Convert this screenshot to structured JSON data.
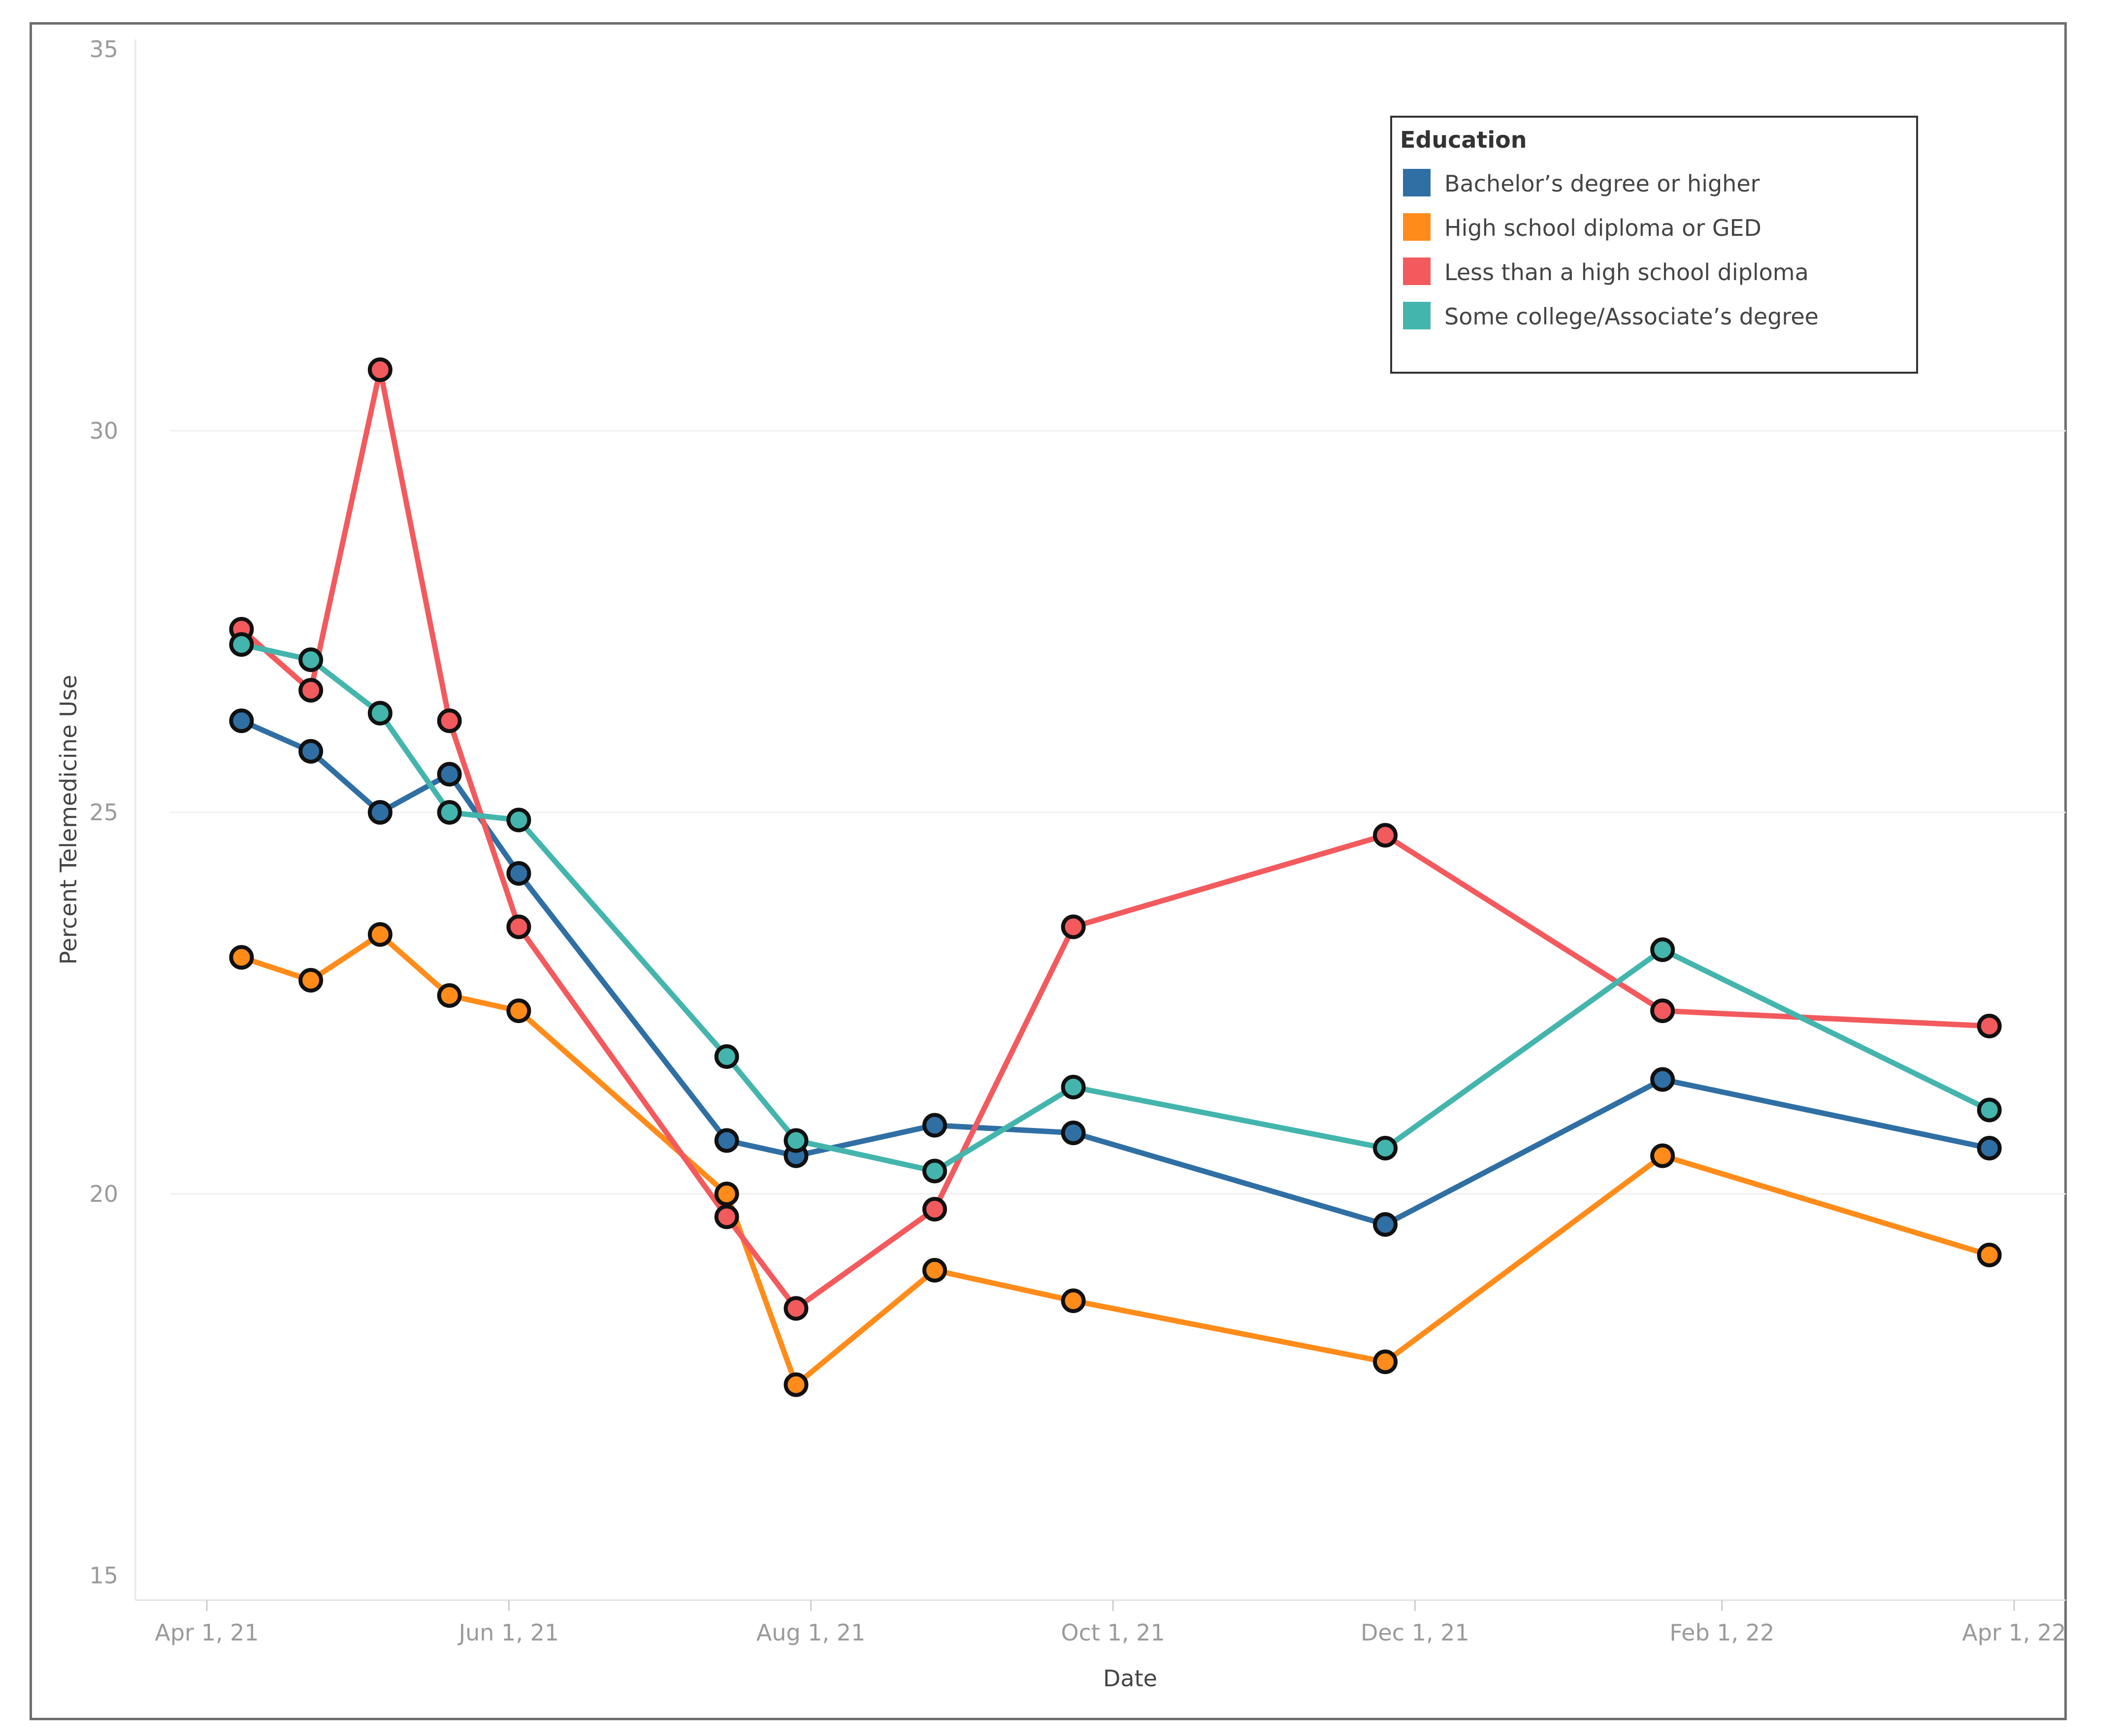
{
  "chart_data": {
    "type": "line",
    "title": "",
    "xlabel": "Date",
    "ylabel": "Percent Telemedicine Use",
    "ylim": [
      15,
      35
    ],
    "y_ticks": [
      15,
      20,
      25,
      30,
      35
    ],
    "x_ticks": [
      {
        "label": "Apr 1, 21",
        "day": 0
      },
      {
        "label": "Jun 1, 21",
        "day": 61
      },
      {
        "label": "Aug 1, 21",
        "day": 122
      },
      {
        "label": "Oct 1, 21",
        "day": 183
      },
      {
        "label": "Dec 1, 21",
        "day": 244
      },
      {
        "label": "Feb 1, 22",
        "day": 306
      },
      {
        "label": "Apr 1, 22",
        "day": 365
      }
    ],
    "x_days": [
      7,
      21,
      35,
      49,
      63,
      105,
      119,
      147,
      175,
      238,
      294,
      360
    ],
    "legend": {
      "title": "Education",
      "position": "top-right"
    },
    "series": [
      {
        "name": "Bachelor’s degree or higher",
        "color": "#2f6fa4",
        "values": [
          26.2,
          25.8,
          25.0,
          25.5,
          24.2,
          20.7,
          20.5,
          20.9,
          20.8,
          19.6,
          21.5,
          20.6
        ]
      },
      {
        "name": "High school diploma or GED",
        "color": "#ff8c1a",
        "values": [
          23.1,
          22.8,
          23.4,
          22.6,
          22.4,
          20.0,
          17.5,
          19.0,
          18.6,
          17.8,
          20.5,
          19.2
        ]
      },
      {
        "name": "Less than a high school diploma",
        "color": "#f25a5d",
        "values": [
          27.4,
          26.6,
          30.8,
          26.2,
          23.5,
          19.7,
          18.5,
          19.8,
          23.5,
          24.7,
          22.4,
          22.2
        ]
      },
      {
        "name": "Some college/Associate’s degree",
        "color": "#44b5ad",
        "values": [
          27.2,
          27.0,
          26.3,
          25.0,
          24.9,
          21.8,
          20.7,
          20.3,
          21.4,
          20.6,
          23.2,
          21.1
        ]
      }
    ]
  }
}
